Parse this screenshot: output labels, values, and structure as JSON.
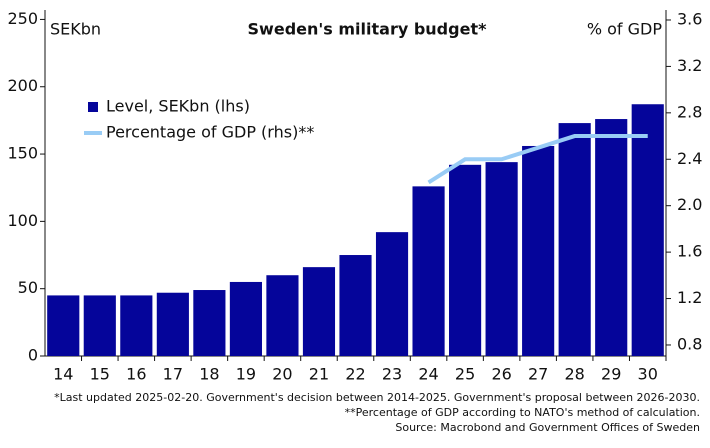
{
  "chart_data": {
    "type": "bar",
    "title": "Sweden's military budget*",
    "ylabel": "SEKbn",
    "y2label": "% of GDP",
    "categories": [
      "14",
      "15",
      "16",
      "17",
      "18",
      "19",
      "20",
      "21",
      "22",
      "23",
      "24",
      "25",
      "26",
      "27",
      "28",
      "29",
      "30"
    ],
    "series": [
      {
        "name": "Level, SEKbn (lhs)",
        "type": "bar",
        "color": "#05059a",
        "values": [
          45,
          45,
          45,
          47,
          49,
          55,
          60,
          66,
          75,
          92,
          126,
          142,
          144,
          156,
          173,
          176,
          187
        ]
      },
      {
        "name": "Percentage of GDP (rhs)**",
        "type": "line",
        "axis": "y2",
        "color": "#99ccf5",
        "values": [
          null,
          null,
          null,
          null,
          null,
          null,
          null,
          null,
          null,
          null,
          2.2,
          2.4,
          2.4,
          2.5,
          2.6,
          2.6,
          2.6
        ]
      }
    ],
    "ylim": [
      0,
      257
    ],
    "yticks": [
      0,
      50,
      100,
      150,
      200,
      250
    ],
    "y2lim": [
      0.705,
      3.686
    ],
    "y2ticks": [
      0.8,
      1.2,
      1.6,
      {
        "value": 2,
        "label": "2.0"
      },
      2.4,
      2.8,
      3.2,
      3.6
    ],
    "legend": "upper left",
    "notes": [
      "*Last updated 2025-02-20. Government's decision between 2014-2025. Government's proposal between 2026-2030.",
      "**Percentage of GDP according to NATO's method of calculation.",
      "Source: Macrobond and Government Offices of Sweden"
    ]
  }
}
